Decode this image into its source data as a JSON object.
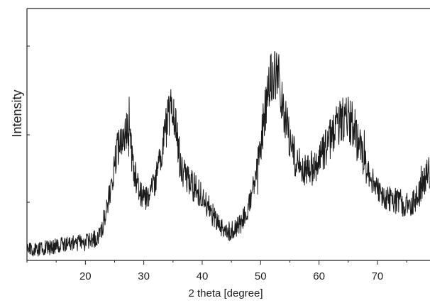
{
  "chart_data": {
    "type": "line",
    "title": "",
    "xlabel": "2 theta [degree]",
    "ylabel": "Intensity",
    "xlim": [
      10,
      79
    ],
    "ylim": [
      0,
      100
    ],
    "x_ticks": [
      20,
      30,
      40,
      50,
      60,
      70
    ],
    "y_ticks_labeled": false,
    "grid": false,
    "legend": "none",
    "series": [
      {
        "color": "#1a1a1a",
        "points": [
          [
            10,
            3
          ],
          [
            12,
            3
          ],
          [
            14,
            4
          ],
          [
            16,
            5
          ],
          [
            18,
            6
          ],
          [
            20,
            6
          ],
          [
            22,
            8
          ],
          [
            23,
            14
          ],
          [
            24,
            26
          ],
          [
            25,
            42
          ],
          [
            26,
            52
          ],
          [
            26.8,
            57
          ],
          [
            27.5,
            52
          ],
          [
            28.5,
            36
          ],
          [
            29.5,
            27
          ],
          [
            31,
            27
          ],
          [
            32,
            33
          ],
          [
            33,
            44
          ],
          [
            34,
            60
          ],
          [
            34.8,
            66
          ],
          [
            35.5,
            56
          ],
          [
            36.5,
            40
          ],
          [
            37.5,
            34
          ],
          [
            39,
            30
          ],
          [
            40.5,
            24
          ],
          [
            42,
            17
          ],
          [
            43.5,
            12
          ],
          [
            45,
            11
          ],
          [
            46.5,
            14
          ],
          [
            48,
            23
          ],
          [
            49.5,
            40
          ],
          [
            50.5,
            60
          ],
          [
            51.5,
            77
          ],
          [
            52.3,
            81
          ],
          [
            53,
            77
          ],
          [
            54,
            65
          ],
          [
            55,
            52
          ],
          [
            56,
            43
          ],
          [
            57,
            39
          ],
          [
            58.5,
            38
          ],
          [
            60,
            42
          ],
          [
            61.5,
            50
          ],
          [
            63,
            58
          ],
          [
            64,
            61
          ],
          [
            65,
            61
          ],
          [
            66,
            58
          ],
          [
            67,
            49
          ],
          [
            68,
            40
          ],
          [
            69.5,
            31
          ],
          [
            71,
            27
          ],
          [
            72.5,
            25
          ],
          [
            74,
            24
          ],
          [
            75.5,
            22
          ],
          [
            77,
            27
          ],
          [
            78,
            34
          ],
          [
            79,
            38
          ]
        ]
      }
    ]
  }
}
